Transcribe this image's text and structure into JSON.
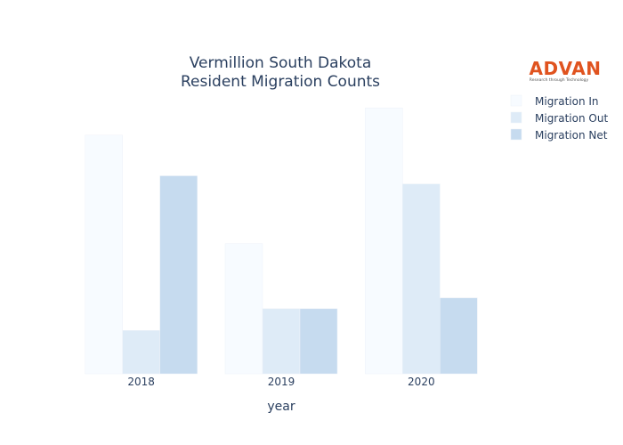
{
  "chart_data": {
    "type": "bar",
    "title_lines": [
      "Vermillion South Dakota",
      "Resident Migration Counts"
    ],
    "xlabel": "year",
    "ylabel": "",
    "categories": [
      "2018",
      "2019",
      "2020"
    ],
    "series": [
      {
        "name": "Migration In",
        "values": [
          88,
          48,
          98
        ],
        "color": "#f7fbff"
      },
      {
        "name": "Migration Out",
        "values": [
          16,
          24,
          70
        ],
        "color": "#deebf7"
      },
      {
        "name": "Migration Net",
        "values": [
          73,
          24,
          28
        ],
        "color": "#c6dbef"
      }
    ],
    "ylim": [
      0,
      105
    ],
    "grid": false,
    "legend_position": "top-right"
  },
  "logo": {
    "name": "ADVAN",
    "tagline": "Research through Technology"
  }
}
